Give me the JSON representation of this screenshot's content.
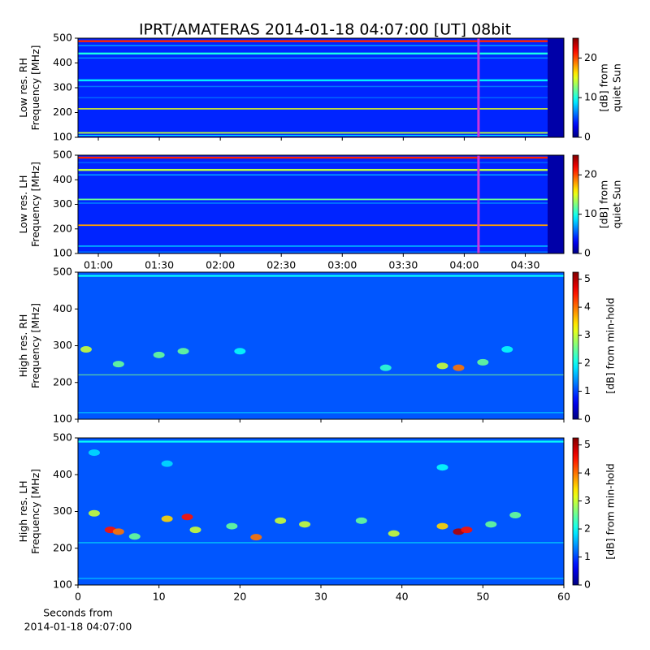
{
  "title": "IPRT/AMATERAS 2014-01-18 04:07:00 [UT]   08bit",
  "chart_data": [
    {
      "type": "spectrogram",
      "cmap": "jet",
      "ylabel": [
        "Low res. RH",
        "Frequency [MHz]"
      ],
      "xlim": [
        50,
        289
      ],
      "xticks": [
        60,
        90,
        120,
        150,
        180,
        210,
        240,
        270
      ],
      "xticklabels": false,
      "ylim": [
        100,
        500
      ],
      "yticks": [
        100,
        200,
        300,
        400,
        500
      ],
      "clim": [
        0,
        25
      ],
      "cticks": [
        0,
        10,
        20
      ],
      "colorbar_label": [
        "[dB] from",
        "quiet Sun"
      ],
      "background": 4,
      "bands": [
        {
          "y": 488,
          "height": 8,
          "value": 21
        },
        {
          "y": 470,
          "height": 5,
          "value": 7
        },
        {
          "y": 438,
          "height": 8,
          "value": 10
        },
        {
          "y": 420,
          "height": 4,
          "value": 7
        },
        {
          "y": 330,
          "height": 8,
          "value": 9
        },
        {
          "y": 305,
          "height": 5,
          "value": 6
        },
        {
          "y": 260,
          "height": 4,
          "value": 6
        },
        {
          "y": 215,
          "height": 5,
          "value": 15
        },
        {
          "y": 118,
          "height": 6,
          "value": 14
        },
        {
          "y": 108,
          "height": 4,
          "value": 9
        }
      ],
      "data_gap": {
        "x": [
          281,
          289
        ],
        "value": 1
      },
      "marker": {
        "x": 247,
        "color": "#cc33dd"
      }
    },
    {
      "type": "spectrogram",
      "cmap": "jet",
      "ylabel": [
        "Low res. LH",
        "Frequency [MHz]"
      ],
      "xlim": [
        50,
        289
      ],
      "xticks": [
        {
          "value": 60,
          "label": "01:00"
        },
        {
          "value": 90,
          "label": "01:30"
        },
        {
          "value": 120,
          "label": "02:00"
        },
        {
          "value": 150,
          "label": "02:30"
        },
        {
          "value": 180,
          "label": "03:00"
        },
        {
          "value": 210,
          "label": "03:30"
        },
        {
          "value": 240,
          "label": "04:00"
        },
        {
          "value": 270,
          "label": "04:30"
        }
      ],
      "xticklabels": true,
      "ylim": [
        100,
        500
      ],
      "yticks": [
        100,
        200,
        300,
        400,
        500
      ],
      "clim": [
        0,
        25
      ],
      "cticks": [
        0,
        10,
        20
      ],
      "colorbar_label": [
        "[dB] from",
        "quiet Sun"
      ],
      "background": 4,
      "bands": [
        {
          "y": 490,
          "height": 8,
          "value": 21
        },
        {
          "y": 470,
          "height": 4,
          "value": 6
        },
        {
          "y": 440,
          "height": 8,
          "value": 14
        },
        {
          "y": 420,
          "height": 4,
          "value": 8
        },
        {
          "y": 320,
          "height": 6,
          "value": 12
        },
        {
          "y": 305,
          "height": 4,
          "value": 7
        },
        {
          "y": 215,
          "height": 6,
          "value": 18
        },
        {
          "y": 130,
          "height": 5,
          "value": 8
        },
        {
          "y": 106,
          "height": 5,
          "value": 6
        }
      ],
      "data_gap": {
        "x": [
          281,
          289
        ],
        "value": 1
      },
      "marker": {
        "x": 247,
        "color": "#cc33dd"
      }
    },
    {
      "type": "spectrogram",
      "cmap": "jet",
      "ylabel": [
        "High res. RH",
        "Frequency [MHz]"
      ],
      "xlim": [
        0,
        60
      ],
      "xticks": [
        0,
        10,
        20,
        30,
        40,
        50,
        60
      ],
      "xticklabels": false,
      "ylim": [
        100,
        500
      ],
      "yticks": [
        100,
        200,
        300,
        400,
        500
      ],
      "clim": [
        0,
        5.25
      ],
      "cticks": [
        0,
        1,
        2,
        3,
        4,
        5
      ],
      "colorbar_label": [
        "[dB] from min-hold"
      ],
      "background": 1.1,
      "bands": [
        {
          "y": 490,
          "height": 5,
          "value": 2
        },
        {
          "y": 221,
          "height": 2,
          "value": 2.6
        },
        {
          "y": 118,
          "height": 3,
          "value": 1.6
        }
      ],
      "bursts": [
        {
          "x": 1,
          "y": 290,
          "value": 3
        },
        {
          "x": 5,
          "y": 250,
          "value": 2.5
        },
        {
          "x": 10,
          "y": 275,
          "value": 2.5
        },
        {
          "x": 13,
          "y": 285,
          "value": 2.5
        },
        {
          "x": 20,
          "y": 285,
          "value": 2
        },
        {
          "x": 38,
          "y": 240,
          "value": 2.2
        },
        {
          "x": 45,
          "y": 245,
          "value": 3
        },
        {
          "x": 47,
          "y": 240,
          "value": 4
        },
        {
          "x": 50,
          "y": 255,
          "value": 2.5
        },
        {
          "x": 53,
          "y": 290,
          "value": 2
        }
      ]
    },
    {
      "type": "spectrogram",
      "cmap": "jet",
      "ylabel": [
        "High res. LH",
        "Frequency [MHz]"
      ],
      "xlabel": [
        "Seconds from",
        "2014-01-18 04:07:00"
      ],
      "xlim": [
        0,
        60
      ],
      "xticks": [
        0,
        10,
        20,
        30,
        40,
        50,
        60
      ],
      "xticklabels": true,
      "ylim": [
        100,
        500
      ],
      "yticks": [
        100,
        200,
        300,
        400,
        500
      ],
      "clim": [
        0,
        5.25
      ],
      "cticks": [
        0,
        1,
        2,
        3,
        4,
        5
      ],
      "colorbar_label": [
        "[dB] from min-hold"
      ],
      "background": 1.1,
      "bands": [
        {
          "y": 490,
          "height": 5,
          "value": 2
        },
        {
          "y": 215,
          "height": 2,
          "value": 2
        },
        {
          "y": 118,
          "height": 3,
          "value": 1.6
        }
      ],
      "bursts": [
        {
          "x": 4,
          "y": 250,
          "value": 4.5
        },
        {
          "x": 5,
          "y": 245,
          "value": 4
        },
        {
          "x": 2,
          "y": 295,
          "value": 3
        },
        {
          "x": 7,
          "y": 232,
          "value": 2.5
        },
        {
          "x": 11,
          "y": 280,
          "value": 3.5
        },
        {
          "x": 13.5,
          "y": 285,
          "value": 4.5
        },
        {
          "x": 14.5,
          "y": 250,
          "value": 3
        },
        {
          "x": 19,
          "y": 260,
          "value": 2.5
        },
        {
          "x": 22,
          "y": 230,
          "value": 4
        },
        {
          "x": 25,
          "y": 275,
          "value": 3
        },
        {
          "x": 28,
          "y": 265,
          "value": 3
        },
        {
          "x": 35,
          "y": 275,
          "value": 2.5
        },
        {
          "x": 39,
          "y": 240,
          "value": 3
        },
        {
          "x": 45,
          "y": 260,
          "value": 3.5
        },
        {
          "x": 47,
          "y": 245,
          "value": 5
        },
        {
          "x": 48,
          "y": 250,
          "value": 4.5
        },
        {
          "x": 51,
          "y": 265,
          "value": 2.5
        },
        {
          "x": 54,
          "y": 290,
          "value": 2.5
        },
        {
          "x": 2,
          "y": 460,
          "value": 1.8
        },
        {
          "x": 11,
          "y": 430,
          "value": 1.8
        },
        {
          "x": 45,
          "y": 420,
          "value": 2
        }
      ]
    }
  ]
}
